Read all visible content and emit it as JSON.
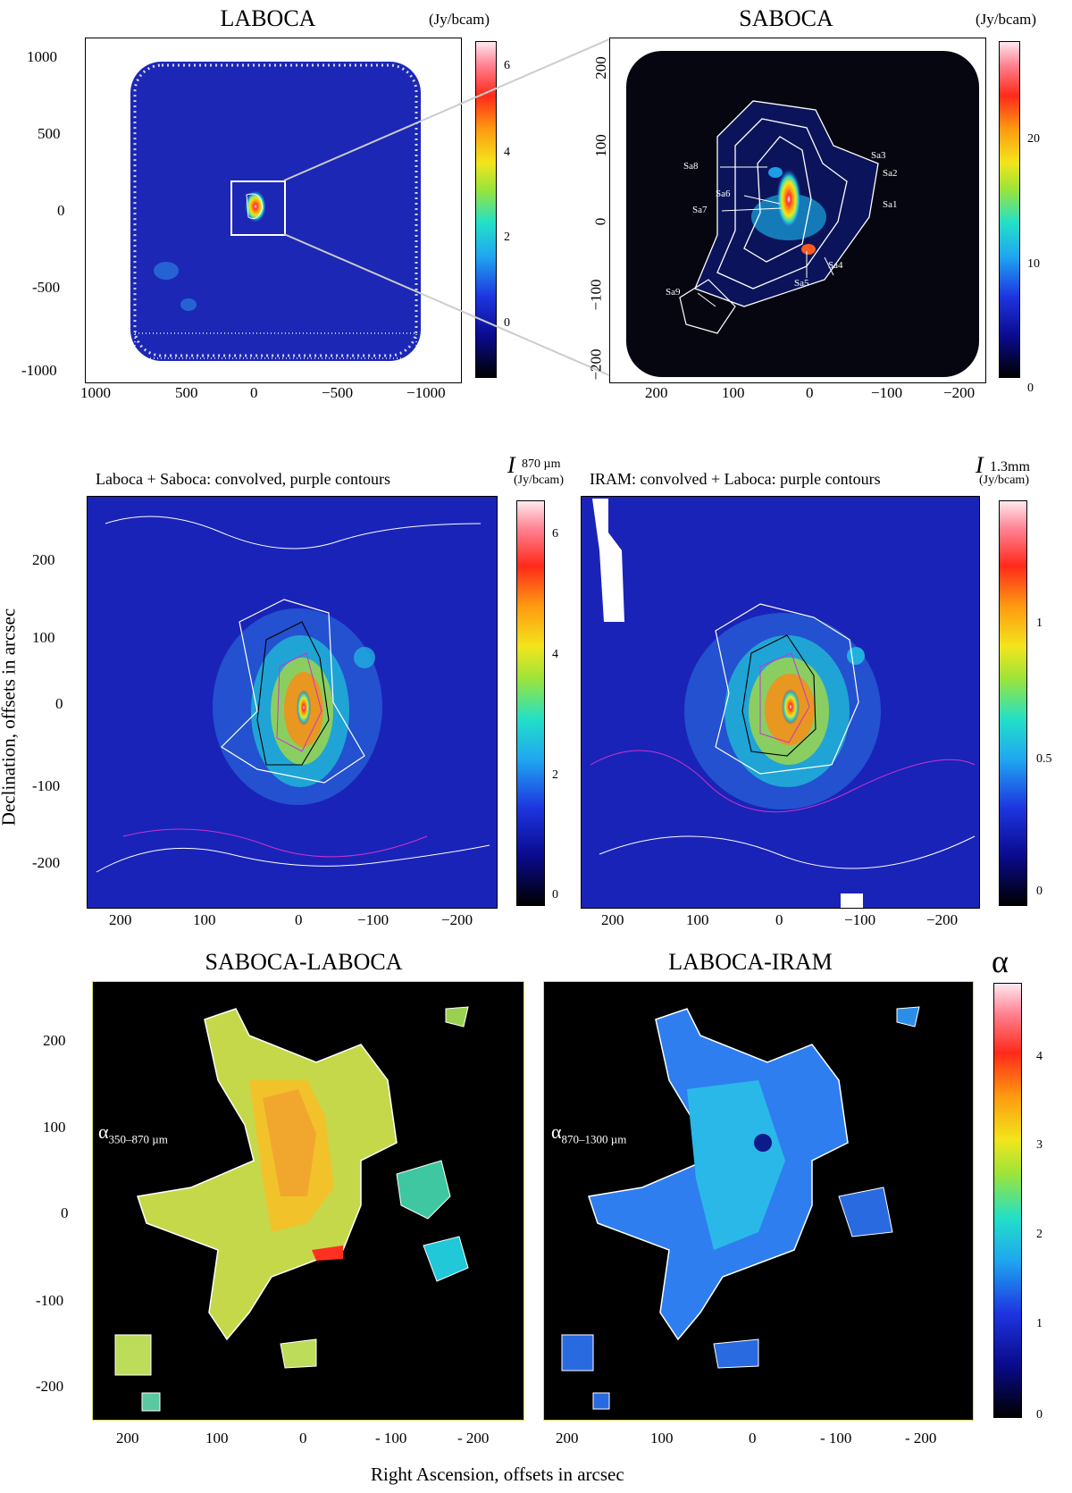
{
  "row1": {
    "left": {
      "title": "LABOCA",
      "unit": "(Jy/bcam)",
      "yticks": [
        "1000",
        "500",
        "0",
        "-500",
        "-1000"
      ],
      "xticks": [
        "1000",
        "500",
        "0",
        "−500",
        "−1000"
      ],
      "cbar_ticks": [
        "6",
        "4",
        "2",
        "0"
      ]
    },
    "right": {
      "title": "SABOCA",
      "unit": "(Jy/bcam)",
      "yticks": [
        "200",
        "100",
        "0",
        "−100",
        "−200"
      ],
      "xticks": [
        "200",
        "100",
        "0",
        "−100",
        "−200"
      ],
      "cbar_ticks": [
        "20",
        "10",
        "0"
      ],
      "sources": [
        "Sa8",
        "Sa6",
        "Sa7",
        "Sa5",
        "Sa4",
        "Sa3",
        "Sa2",
        "Sa1",
        "Sa9"
      ]
    }
  },
  "row2": {
    "left": {
      "subtitle": "Laboca + Saboca: convolved, purple contours",
      "unit_symbol": "I",
      "unit_sub": "870 µm",
      "unit": "(Jy/bcam)",
      "cbar_ticks": [
        "6",
        "4",
        "2",
        "0"
      ]
    },
    "right": {
      "subtitle": "IRAM: convolved + Laboca: purple contours",
      "unit_symbol": "I",
      "unit_sub": "1.3mm",
      "unit": "(Jy/bcam)",
      "cbar_ticks": [
        "1",
        "0.5",
        "0"
      ]
    },
    "yticks": [
      "200",
      "100",
      "0",
      "-100",
      "-200"
    ],
    "xticks": [
      "200",
      "100",
      "0",
      "−100",
      "−200"
    ],
    "ylabel": "Declination, offsets in arcsec"
  },
  "row3": {
    "left": {
      "title": "SABOCA-LABOCA",
      "alpha_label": "α",
      "alpha_sub": "350–870 µm"
    },
    "right": {
      "title": "LABOCA-IRAM",
      "alpha_label": "α",
      "alpha_sub": "870–1300 µm"
    },
    "cbar_title": "α",
    "cbar_ticks": [
      "4",
      "3",
      "2",
      "1",
      "0"
    ],
    "yticks": [
      "200",
      "100",
      "0",
      "-100",
      "-200"
    ],
    "xticks": [
      "200",
      "100",
      "0",
      "- 100",
      "- 200"
    ],
    "xlabel": "Right Ascension, offsets in arcsec"
  },
  "colors": {
    "map_bg": "#1a23b8",
    "alpha_bg": "#000000",
    "contour": "#ffffff",
    "purple": "#cc33cc"
  }
}
